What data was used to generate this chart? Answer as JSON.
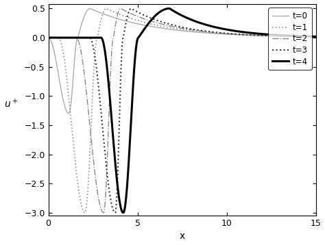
{
  "title": "",
  "xlabel": "x",
  "ylabel": "$u^+$",
  "xlim": [
    0,
    15
  ],
  "ylim": [
    -3.05,
    0.58
  ],
  "xticks": [
    0,
    5,
    10,
    15
  ],
  "yticks": [
    -3,
    -2.5,
    -2,
    -1.5,
    -1,
    -0.5,
    0,
    0.5
  ],
  "legend_labels": [
    "t=0",
    "t=1",
    "t=2",
    "t=3",
    "t=4"
  ],
  "background_color": "#ffffff",
  "curves": [
    {
      "label": "t=0",
      "color": "#aaaaaa",
      "ls": "-",
      "lw": 1.0,
      "x_start": 0.0,
      "x_min": 1.15,
      "min_val": -1.3,
      "x_zero": 1.65,
      "x_peak": 2.35,
      "peak_val": 0.5,
      "decay": 0.28
    },
    {
      "label": "t=1",
      "color": "#999999",
      "ls": ":",
      "lw": 1.3,
      "x_start": 0.55,
      "x_min": 2.05,
      "min_val": -3.0,
      "x_zero": 2.75,
      "x_peak": 3.25,
      "peak_val": 0.5,
      "decay": 0.3
    },
    {
      "label": "t=2",
      "color": "#888888",
      "ls": "-.",
      "lw": 1.0,
      "x_start": 1.55,
      "x_min": 3.1,
      "min_val": -3.0,
      "x_zero": 3.65,
      "x_peak": 4.05,
      "peak_val": 0.5,
      "decay": 0.33
    },
    {
      "label": "t=3",
      "color": "#333333",
      "ls": ":",
      "lw": 1.5,
      "x_start": 2.3,
      "x_min": 3.75,
      "min_val": -3.0,
      "x_zero": 4.2,
      "x_peak": 4.65,
      "peak_val": 0.5,
      "decay": 0.36
    },
    {
      "label": "t=4",
      "color": "#000000",
      "ls": "-",
      "lw": 2.2,
      "x_start": 2.95,
      "x_min": 4.2,
      "min_val": -3.0,
      "x_zero": 5.05,
      "x_peak": 6.8,
      "peak_val": 0.5,
      "decay": 0.4
    }
  ]
}
